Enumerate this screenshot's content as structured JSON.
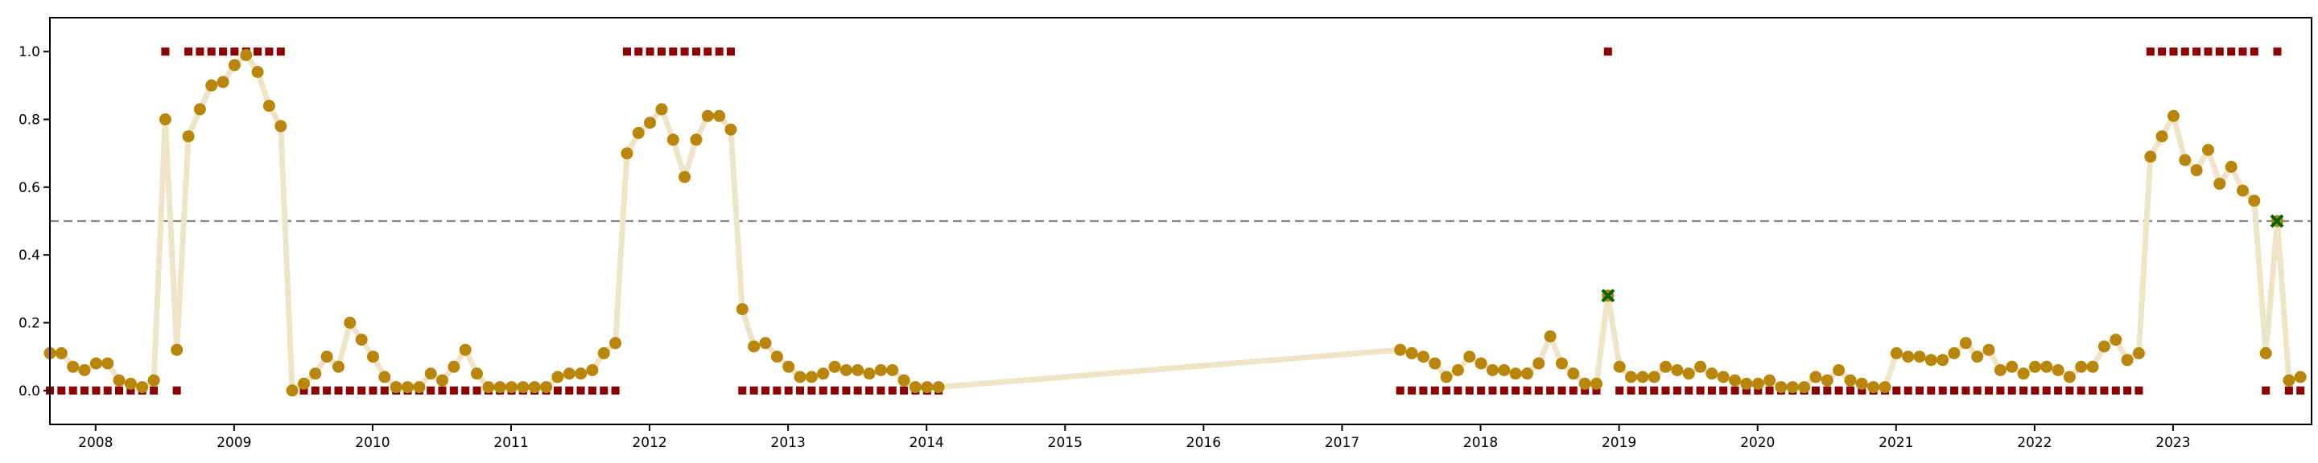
{
  "chart_data": {
    "type": "scatter",
    "title": "",
    "xlabel": "",
    "ylabel": "",
    "xlim": [
      2007.67,
      2024.0
    ],
    "ylim": [
      -0.1,
      1.1
    ],
    "x_ticks": [
      2008,
      2009,
      2010,
      2011,
      2012,
      2013,
      2014,
      2015,
      2016,
      2017,
      2018,
      2019,
      2020,
      2021,
      2022,
      2023
    ],
    "x_tick_labels": [
      "2008",
      "2009",
      "2010",
      "2011",
      "2012",
      "2013",
      "2014",
      "2015",
      "2016",
      "2017",
      "2018",
      "2019",
      "2020",
      "2021",
      "2022",
      "2023"
    ],
    "y_ticks": [
      0.0,
      0.2,
      0.4,
      0.6,
      0.8,
      1.0
    ],
    "y_tick_labels": [
      "0.0",
      "0.2",
      "0.4",
      "0.6",
      "0.8",
      "1.0"
    ],
    "threshold": 0.5,
    "colors": {
      "probability_line": "#efe4c8",
      "probability_point": "#b8860b",
      "label_marker": "#8b0000",
      "anomaly_marker": "#006400",
      "threshold_line": "#888888",
      "axis": "#000000"
    },
    "series": [
      {
        "name": "probability",
        "segments": [
          {
            "x_start": 2007.67,
            "x_step": 0.08333,
            "values": [
              0.11,
              0.11,
              0.07,
              0.06,
              0.08,
              0.08,
              0.03,
              0.02,
              0.01,
              0.03,
              0.8,
              0.12,
              0.75,
              0.83,
              0.9,
              0.91,
              0.96,
              0.99,
              0.94,
              0.84,
              0.78,
              0.0,
              0.02,
              0.05,
              0.1,
              0.07,
              0.2,
              0.15,
              0.1,
              0.04,
              0.01,
              0.01,
              0.01,
              0.05,
              0.03,
              0.07,
              0.12,
              0.05,
              0.01,
              0.01,
              0.01,
              0.01,
              0.01,
              0.01,
              0.04,
              0.05,
              0.05,
              0.06,
              0.11,
              0.14,
              0.7,
              0.76,
              0.79,
              0.83,
              0.74,
              0.63,
              0.74,
              0.81,
              0.81,
              0.77,
              0.24,
              0.13,
              0.14,
              0.1,
              0.07,
              0.04,
              0.04,
              0.05,
              0.07,
              0.06,
              0.06,
              0.05,
              0.06,
              0.06,
              0.03,
              0.01,
              0.01,
              0.01
            ]
          },
          {
            "x_start": 2017.42,
            "x_step": 0.08333,
            "values": [
              0.12,
              0.11,
              0.1,
              0.08,
              0.04,
              0.06,
              0.1,
              0.08,
              0.06,
              0.06,
              0.05,
              0.05,
              0.08,
              0.16,
              0.08,
              0.05,
              0.02,
              0.02,
              0.28,
              0.07,
              0.04,
              0.04,
              0.04,
              0.07,
              0.06,
              0.05,
              0.07,
              0.05,
              0.04,
              0.03,
              0.02,
              0.02,
              0.03,
              0.01,
              0.01,
              0.01,
              0.04,
              0.03,
              0.06,
              0.03,
              0.02,
              0.01,
              0.01,
              0.11,
              0.1,
              0.1,
              0.09,
              0.09,
              0.11,
              0.14,
              0.1,
              0.12,
              0.06,
              0.07,
              0.05,
              0.07,
              0.07,
              0.06,
              0.04,
              0.07,
              0.07,
              0.13,
              0.15,
              0.09,
              0.11,
              0.69,
              0.75,
              0.81,
              0.68,
              0.65,
              0.71,
              0.61,
              0.66,
              0.59,
              0.56,
              0.11,
              0.5,
              0.03,
              0.04
            ]
          }
        ]
      },
      {
        "name": "label",
        "segments": [
          {
            "x_start": 2007.67,
            "x_step": 0.08333,
            "values": [
              0,
              0,
              0,
              0,
              0,
              0,
              0,
              0,
              0,
              0,
              1,
              0,
              1,
              1,
              1,
              1,
              1,
              1,
              1,
              1,
              1,
              0,
              0,
              0,
              0,
              0,
              0,
              0,
              0,
              0,
              0,
              0,
              0,
              0,
              0,
              0,
              0,
              0,
              0,
              0,
              0,
              0,
              0,
              0,
              0,
              0,
              0,
              0,
              0,
              0,
              1,
              1,
              1,
              1,
              1,
              1,
              1,
              1,
              1,
              1,
              0,
              0,
              0,
              0,
              0,
              0,
              0,
              0,
              0,
              0,
              0,
              0,
              0,
              0,
              0,
              0,
              0,
              0
            ]
          },
          {
            "x_start": 2017.42,
            "x_step": 0.08333,
            "values": [
              0,
              0,
              0,
              0,
              0,
              0,
              0,
              0,
              0,
              0,
              0,
              0,
              0,
              0,
              0,
              0,
              0,
              0,
              1,
              0,
              0,
              0,
              0,
              0,
              0,
              0,
              0,
              0,
              0,
              0,
              0,
              0,
              0,
              0,
              0,
              0,
              0,
              0,
              0,
              0,
              0,
              0,
              0,
              0,
              0,
              0,
              0,
              0,
              0,
              0,
              0,
              0,
              0,
              0,
              0,
              0,
              0,
              0,
              0,
              0,
              0,
              0,
              0,
              0,
              0,
              1,
              1,
              1,
              1,
              1,
              1,
              1,
              1,
              1,
              1,
              0,
              1,
              0,
              0
            ]
          }
        ]
      }
    ],
    "anomalies": [
      {
        "x": 2018.92,
        "y": 0.28
      },
      {
        "x": 2023.75,
        "y": 0.5
      }
    ]
  }
}
